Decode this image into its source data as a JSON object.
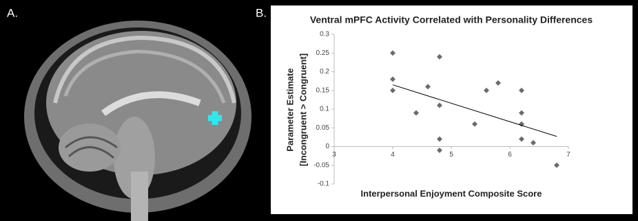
{
  "panel_labels": [
    "A.",
    "B."
  ],
  "chart_data": {
    "type": "scatter",
    "title": "Ventral mPFC Activity Correlated with Personality Differences",
    "x_label": "Interpersonal Enjoyment Composite Score",
    "y_label": [
      "Parameter Estimate",
      "[Incongruent > Congruent]"
    ],
    "x": [
      4,
      4,
      4,
      4.4,
      4.6,
      4.8,
      4.8,
      4.8,
      4.8,
      5.4,
      5.6,
      5.8,
      6.2,
      6.2,
      6.2,
      6.2,
      6.4,
      6.8
    ],
    "values": [
      0.25,
      0.18,
      0.15,
      0.09,
      0.16,
      0.24,
      0.11,
      0.02,
      -0.01,
      0.06,
      0.15,
      0.17,
      0.15,
      0.09,
      0.06,
      0.02,
      0.01,
      -0.05
    ],
    "color": "#6b6b6b",
    "trendline": {
      "x": [
        4,
        6.8
      ],
      "y": [
        0.165,
        0.027
      ],
      "color": "#000000"
    },
    "xlim": [
      3,
      7
    ],
    "xticks": [
      3,
      4,
      5,
      6,
      7
    ],
    "ylim": [
      -0.1,
      0.3
    ],
    "yticks": [
      -0.1,
      -0.05,
      0,
      0.05,
      0.1,
      0.15,
      0.2,
      0.25,
      0.3
    ]
  }
}
